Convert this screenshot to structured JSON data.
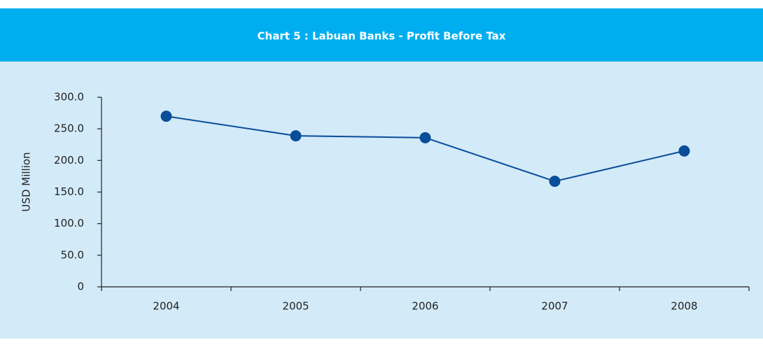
{
  "chart_data": {
    "type": "line",
    "title": "Chart 5 : Labuan Banks - Profit Before Tax",
    "y_label": "USD Million",
    "categories": [
      "2004",
      "2005",
      "2006",
      "2007",
      "2008"
    ],
    "series": [
      {
        "name": "Profit Before Tax",
        "color": "#0a4d99",
        "values": [
          270,
          239,
          236,
          167,
          215
        ]
      }
    ],
    "ylim": [
      0,
      300
    ],
    "yticks": [
      0,
      {
        "value": 50,
        "label": "50.0"
      },
      {
        "value": 100,
        "label": "100.0"
      },
      {
        "value": 150,
        "label": "150.0"
      },
      {
        "value": 200,
        "label": "200.0"
      },
      {
        "value": 250,
        "label": "250.0"
      },
      {
        "value": 300,
        "label": "300.0"
      }
    ]
  }
}
